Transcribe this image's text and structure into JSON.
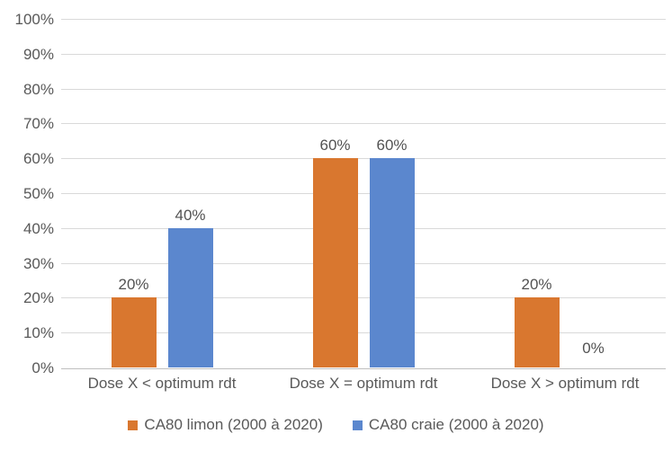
{
  "chart_data": {
    "type": "bar",
    "categories": [
      "Dose X < optimum rdt",
      "Dose X = optimum rdt",
      "Dose X > optimum rdt"
    ],
    "series": [
      {
        "name": "CA80 limon (2000 à 2020)",
        "color": "#d9772f",
        "values": [
          20,
          60,
          20
        ],
        "data_labels": [
          "20%",
          "60%",
          "20%"
        ]
      },
      {
        "name": "CA80 craie (2000 à 2020)",
        "color": "#5b87ce",
        "values": [
          40,
          60,
          0
        ],
        "data_labels": [
          "40%",
          "60%",
          "0%"
        ]
      }
    ],
    "y_ticks": [
      "100%",
      "90%",
      "80%",
      "70%",
      "60%",
      "50%",
      "40%",
      "30%",
      "20%",
      "10%",
      "0%"
    ],
    "ylim": [
      0,
      100
    ],
    "value_suffix": "%",
    "grid": true,
    "legend_position": "bottom",
    "style": {
      "background": "#ffffff",
      "text_color": "#595959",
      "data_label_color": "#525252",
      "gridline_color": "#d9d9d9",
      "axis_line_color": "#bfbfbf"
    }
  }
}
